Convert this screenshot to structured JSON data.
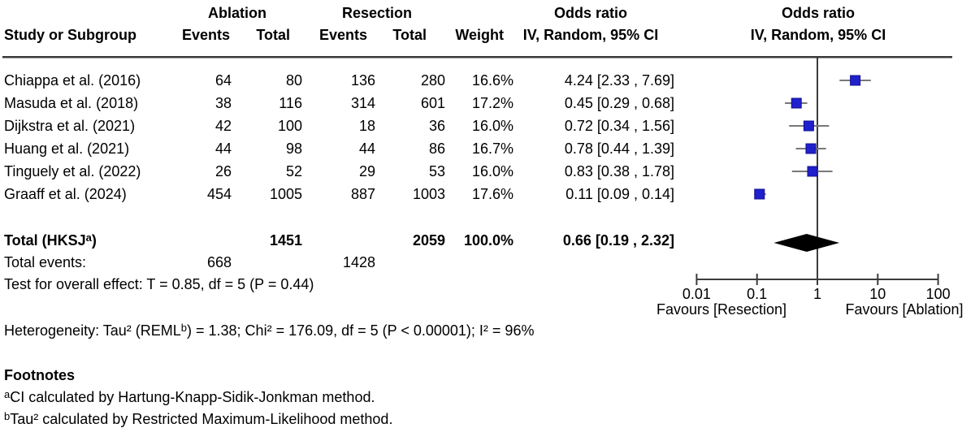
{
  "header": {
    "groups": {
      "ablation": "Ablation",
      "resection": "Resection",
      "or_text": "Odds ratio",
      "or_plot": "Odds ratio"
    },
    "cols": {
      "study": "Study or Subgroup",
      "events": "Events",
      "total": "Total",
      "events2": "Events",
      "total2": "Total",
      "weight": "Weight",
      "ci_text": "IV, Random, 95% CI",
      "ci_plot": "IV, Random, 95% CI"
    }
  },
  "rows": [
    {
      "study": "Chiappa et al. (2016)",
      "a_events": "64",
      "a_total": "80",
      "r_events": "136",
      "r_total": "280",
      "weight": "16.6%",
      "or_label": "4.24 [2.33 , 7.69]"
    },
    {
      "study": "Masuda et al. (2018)",
      "a_events": "38",
      "a_total": "116",
      "r_events": "314",
      "r_total": "601",
      "weight": "17.2%",
      "or_label": "0.45 [0.29 , 0.68]"
    },
    {
      "study": "Dijkstra et al. (2021)",
      "a_events": "42",
      "a_total": "100",
      "r_events": "18",
      "r_total": "36",
      "weight": "16.0%",
      "or_label": "0.72 [0.34 , 1.56]"
    },
    {
      "study": "Huang et al. (2021)",
      "a_events": "44",
      "a_total": "98",
      "r_events": "44",
      "r_total": "86",
      "weight": "16.7%",
      "or_label": "0.78 [0.44 , 1.39]"
    },
    {
      "study": "Tinguely et al. (2022)",
      "a_events": "26",
      "a_total": "52",
      "r_events": "29",
      "r_total": "53",
      "weight": "16.0%",
      "or_label": "0.83 [0.38 , 1.78]"
    },
    {
      "study": "Graaff et al. (2024)",
      "a_events": "454",
      "a_total": "1005",
      "r_events": "887",
      "r_total": "1003",
      "weight": "17.6%",
      "or_label": "0.11 [0.09 , 0.14]"
    }
  ],
  "total": {
    "label_main": "Total (HKSJ",
    "label_sup": "a",
    "label_close": ")",
    "ablation_total": "1451",
    "resection_total": "2059",
    "weight": "100.0%",
    "or_label": "0.66 [0.19 , 2.32]"
  },
  "total_events": {
    "label": "Total events:",
    "ablation": "668",
    "resection": "1428"
  },
  "overall_effect": "Test for overall effect: T = 0.85, df = 5 (P = 0.44)",
  "heterogeneity": {
    "part1": "Heterogeneity: Tau² (REML",
    "sup": "b",
    "part2": ") = 1.38; Chi² = 176.09, df = 5 (P < 0.00001); I² = 96%"
  },
  "footnotes": {
    "heading": "Footnotes",
    "a_sup": "a",
    "a_text": "CI calculated by Hartung-Knapp-Sidik-Jonkman method.",
    "b_sup": "b",
    "b_text": "Tau² calculated by Restricted Maximum-Likelihood method."
  },
  "colors": {
    "marker_fill": "#2020cc",
    "marker_border": "#101090",
    "ci_line": "#787878",
    "diamond": "#000000",
    "axis": "#3c3c3c",
    "text": "#000000"
  },
  "chart_data": {
    "type": "scatter",
    "variant": "forest-plot",
    "title": "Odds ratio",
    "subtitle": "IV, Random, 95% CI",
    "x_scale": "log10",
    "x_range": [
      0.01,
      100
    ],
    "x_ticks": [
      0.01,
      0.1,
      1,
      10,
      100
    ],
    "x_tick_labels": [
      "0.01",
      "0.1",
      "1",
      "10",
      "100"
    ],
    "null_line": 1,
    "axis_labels": {
      "left": "Favours [Resection]",
      "right": "Favours [Ablation]"
    },
    "series": [
      {
        "name": "Chiappa et al. (2016)",
        "or": 4.24,
        "ci_low": 2.33,
        "ci_high": 7.69,
        "weight_pct": 16.6
      },
      {
        "name": "Masuda et al. (2018)",
        "or": 0.45,
        "ci_low": 0.29,
        "ci_high": 0.68,
        "weight_pct": 17.2
      },
      {
        "name": "Dijkstra et al. (2021)",
        "or": 0.72,
        "ci_low": 0.34,
        "ci_high": 1.56,
        "weight_pct": 16.0
      },
      {
        "name": "Huang et al. (2021)",
        "or": 0.78,
        "ci_low": 0.44,
        "ci_high": 1.39,
        "weight_pct": 16.7
      },
      {
        "name": "Tinguely et al. (2022)",
        "or": 0.83,
        "ci_low": 0.38,
        "ci_high": 1.78,
        "weight_pct": 16.0
      },
      {
        "name": "Graaff et al. (2024)",
        "or": 0.11,
        "ci_low": 0.09,
        "ci_high": 0.14,
        "weight_pct": 17.6
      }
    ],
    "summary": {
      "name": "Total (HKSJ)",
      "or": 0.66,
      "ci_low": 0.19,
      "ci_high": 2.32,
      "weight_pct": 100.0
    }
  }
}
